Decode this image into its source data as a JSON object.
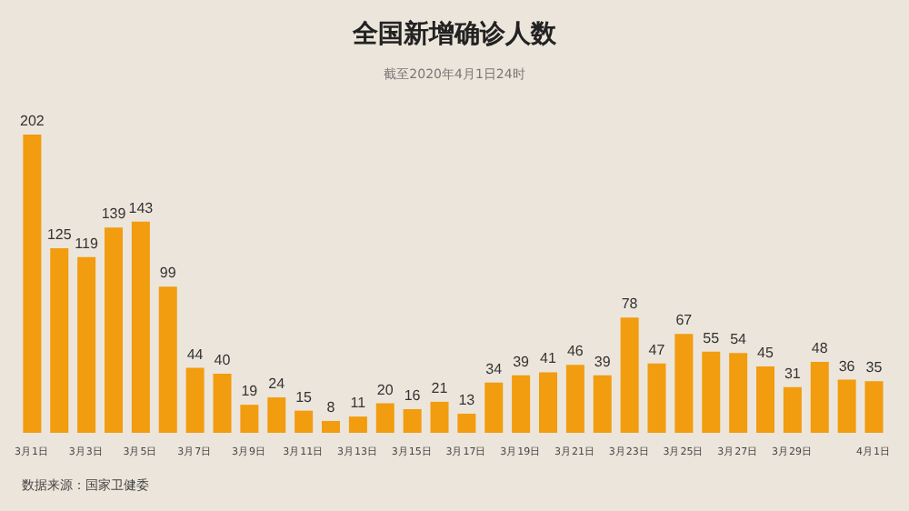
{
  "chart_data": {
    "type": "bar",
    "title": "全国新增确诊人数",
    "subtitle": "截至2020年4月1日24时",
    "categories": [
      "3月1日",
      null,
      "3月3日",
      null,
      "3月5日",
      null,
      "3月7日",
      null,
      "3月9日",
      null,
      "3月11日",
      null,
      "3月13日",
      null,
      "3月15日",
      null,
      "3月17日",
      null,
      "3月19日",
      null,
      "3月21日",
      null,
      "3月23日",
      null,
      "3月25日",
      null,
      "3月27日",
      null,
      "3月29日",
      null,
      null,
      "4月1日"
    ],
    "values": [
      202,
      125,
      119,
      139,
      143,
      99,
      44,
      40,
      19,
      24,
      15,
      8,
      11,
      20,
      16,
      21,
      13,
      34,
      39,
      41,
      46,
      39,
      78,
      47,
      67,
      55,
      54,
      45,
      31,
      48,
      36,
      35
    ],
    "color": "#f29c0f",
    "data_labels": true,
    "annotations": [
      "数据来源：国家卫健委"
    ]
  }
}
